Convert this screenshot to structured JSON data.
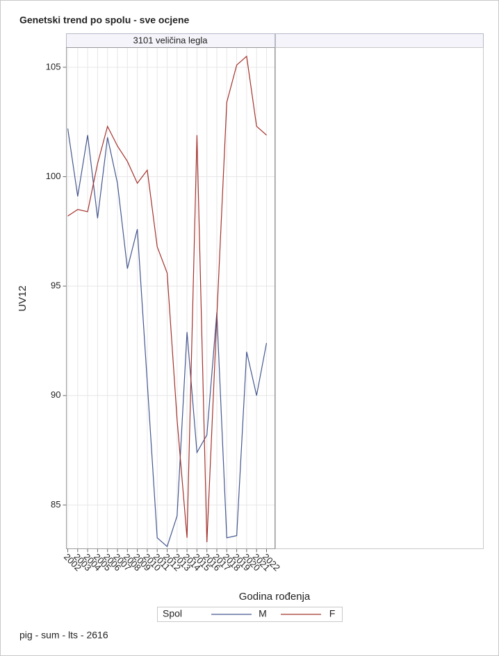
{
  "chart_data": {
    "type": "line",
    "title": "Genetski trend po spolu - sve ocjene",
    "panel": "3101 veličina legla",
    "x": [
      2002,
      2003,
      2004,
      2005,
      2006,
      2007,
      2008,
      2009,
      2010,
      2011,
      2012,
      2013,
      2014,
      2015,
      2016,
      2017,
      2018,
      2019,
      2020,
      2021,
      2022
    ],
    "xticks": [
      2002,
      2003,
      2004,
      2005,
      2006,
      2007,
      2008,
      2009,
      2010,
      2011,
      2012,
      2013,
      2014,
      2015,
      2016,
      2017,
      2018,
      2019,
      2020,
      2021,
      2022
    ],
    "xlim": [
      2001.86,
      2022.84
    ],
    "series": [
      {
        "name": "M",
        "color": "#44568f",
        "values": [
          102.2,
          99.1,
          101.9,
          98.1,
          101.8,
          99.7,
          95.8,
          97.6,
          90.6,
          83.5,
          83.1,
          84.5,
          92.9,
          87.4,
          88.2,
          93.8,
          83.5,
          83.6,
          92.0,
          90.0,
          92.4
        ]
      },
      {
        "name": "F",
        "color": "#a2302a",
        "values": [
          98.2,
          98.5,
          98.4,
          100.6,
          102.3,
          101.4,
          100.7,
          99.7,
          100.3,
          96.8,
          95.6,
          88.9,
          83.5,
          101.9,
          83.3,
          93.6,
          103.4,
          105.1,
          105.5,
          102.3,
          101.9
        ]
      }
    ],
    "ylim": [
      83.0,
      105.9
    ],
    "yticks": [
      85,
      90,
      95,
      100,
      105
    ],
    "xlabel": "Godina rođenja",
    "ylabel": "UV12",
    "legend_title": "Spol",
    "footnote": "pig - sum - lts - 2616",
    "grid": true
  }
}
